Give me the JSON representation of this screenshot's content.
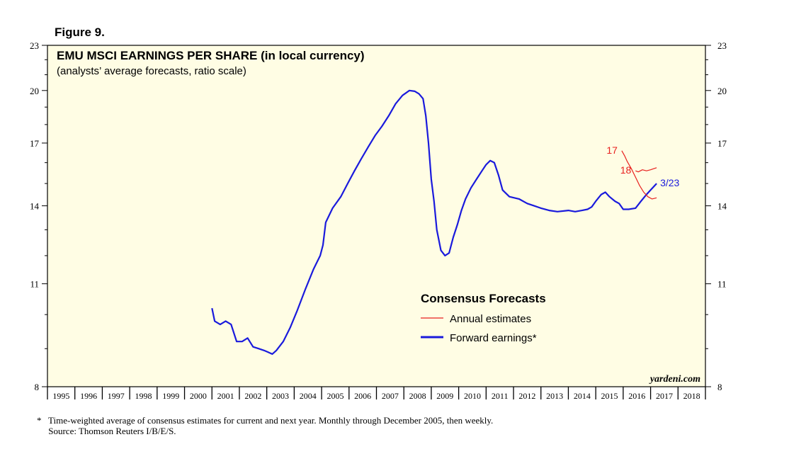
{
  "figure_label": "Figure 9.",
  "footnote": {
    "line1": "*   Time-weighted average of consensus estimates for current and next year. Monthly through December 2005, then weekly.",
    "line2": "     Source: Thomson Reuters I/B/E/S."
  },
  "chart_data": {
    "type": "line",
    "title": "EMU MSCI EARNINGS PER SHARE (in local currency)",
    "subtitle": "(analysts’ average forecasts, ratio scale)",
    "watermark": "yardeni.com",
    "y_scale": "log",
    "ylim": [
      8,
      23
    ],
    "xlim": [
      1995,
      2019
    ],
    "y_ticks": [
      8,
      11,
      14,
      17,
      20,
      23
    ],
    "x_tick_labels": [
      "1995",
      "1996",
      "1997",
      "1998",
      "1999",
      "2000",
      "2001",
      "2002",
      "2003",
      "2004",
      "2005",
      "2006",
      "2007",
      "2008",
      "2009",
      "2010",
      "2011",
      "2012",
      "2013",
      "2014",
      "2015",
      "2016",
      "2017",
      "2018"
    ],
    "legend": {
      "title": "Consensus Forecasts",
      "entries": [
        "Annual estimates",
        "Forward earnings*"
      ],
      "placement": "center-bottom"
    },
    "colors": {
      "annual": "#e8201e",
      "forward": "#1a1adc",
      "background": "#fffde4",
      "text_red": "#e8201e",
      "text_blue": "#1a1adc"
    },
    "series": [
      {
        "name": "Forward earnings*",
        "style": "forward",
        "end_label": "3/23",
        "points": [
          [
            2001.0,
            10.2
          ],
          [
            2001.1,
            9.8
          ],
          [
            2001.3,
            9.7
          ],
          [
            2001.5,
            9.8
          ],
          [
            2001.7,
            9.7
          ],
          [
            2001.9,
            9.2
          ],
          [
            2002.1,
            9.2
          ],
          [
            2002.3,
            9.3
          ],
          [
            2002.5,
            9.05
          ],
          [
            2002.7,
            9.0
          ],
          [
            2002.9,
            8.95
          ],
          [
            2003.05,
            8.9
          ],
          [
            2003.2,
            8.85
          ],
          [
            2003.35,
            8.95
          ],
          [
            2003.6,
            9.2
          ],
          [
            2003.85,
            9.6
          ],
          [
            2004.1,
            10.1
          ],
          [
            2004.4,
            10.8
          ],
          [
            2004.7,
            11.5
          ],
          [
            2004.95,
            12.0
          ],
          [
            2005.05,
            12.4
          ],
          [
            2005.15,
            13.3
          ],
          [
            2005.4,
            13.9
          ],
          [
            2005.7,
            14.4
          ],
          [
            2005.95,
            15.0
          ],
          [
            2006.2,
            15.6
          ],
          [
            2006.45,
            16.2
          ],
          [
            2006.7,
            16.8
          ],
          [
            2006.95,
            17.4
          ],
          [
            2007.2,
            17.9
          ],
          [
            2007.45,
            18.5
          ],
          [
            2007.7,
            19.2
          ],
          [
            2007.95,
            19.7
          ],
          [
            2008.2,
            20.0
          ],
          [
            2008.4,
            19.95
          ],
          [
            2008.55,
            19.8
          ],
          [
            2008.7,
            19.5
          ],
          [
            2008.8,
            18.5
          ],
          [
            2008.9,
            17.0
          ],
          [
            2009.0,
            15.2
          ],
          [
            2009.1,
            14.2
          ],
          [
            2009.2,
            13.0
          ],
          [
            2009.35,
            12.2
          ],
          [
            2009.5,
            12.0
          ],
          [
            2009.65,
            12.1
          ],
          [
            2009.8,
            12.7
          ],
          [
            2009.95,
            13.2
          ],
          [
            2010.1,
            13.8
          ],
          [
            2010.25,
            14.3
          ],
          [
            2010.45,
            14.8
          ],
          [
            2010.65,
            15.2
          ],
          [
            2010.85,
            15.6
          ],
          [
            2011.0,
            15.9
          ],
          [
            2011.15,
            16.1
          ],
          [
            2011.3,
            16.0
          ],
          [
            2011.45,
            15.4
          ],
          [
            2011.6,
            14.7
          ],
          [
            2011.85,
            14.4
          ],
          [
            2012.2,
            14.3
          ],
          [
            2012.5,
            14.1
          ],
          [
            2012.75,
            14.0
          ],
          [
            2013.0,
            13.9
          ],
          [
            2013.3,
            13.8
          ],
          [
            2013.6,
            13.75
          ],
          [
            2014.0,
            13.8
          ],
          [
            2014.25,
            13.75
          ],
          [
            2014.5,
            13.8
          ],
          [
            2014.7,
            13.85
          ],
          [
            2014.85,
            13.95
          ],
          [
            2015.0,
            14.2
          ],
          [
            2015.2,
            14.5
          ],
          [
            2015.35,
            14.6
          ],
          [
            2015.5,
            14.4
          ],
          [
            2015.7,
            14.2
          ],
          [
            2015.85,
            14.1
          ],
          [
            2016.0,
            13.85
          ],
          [
            2016.2,
            13.85
          ],
          [
            2016.45,
            13.9
          ],
          [
            2016.65,
            14.2
          ],
          [
            2016.85,
            14.5
          ],
          [
            2017.0,
            14.7
          ],
          [
            2017.22,
            15.0
          ]
        ]
      },
      {
        "name": "Annual estimates",
        "label": "17",
        "style": "annual",
        "points": [
          [
            2015.95,
            16.6
          ],
          [
            2016.05,
            16.35
          ],
          [
            2016.15,
            16.05
          ],
          [
            2016.3,
            15.7
          ],
          [
            2016.45,
            15.3
          ],
          [
            2016.6,
            14.9
          ],
          [
            2016.75,
            14.6
          ],
          [
            2016.9,
            14.4
          ],
          [
            2017.05,
            14.3
          ],
          [
            2017.22,
            14.35
          ]
        ]
      },
      {
        "name": "Annual estimates",
        "label": "18",
        "style": "annual",
        "points": [
          [
            2016.45,
            15.6
          ],
          [
            2016.55,
            15.55
          ],
          [
            2016.7,
            15.65
          ],
          [
            2016.85,
            15.6
          ],
          [
            2017.0,
            15.65
          ],
          [
            2017.1,
            15.7
          ],
          [
            2017.22,
            15.75
          ]
        ]
      }
    ]
  }
}
